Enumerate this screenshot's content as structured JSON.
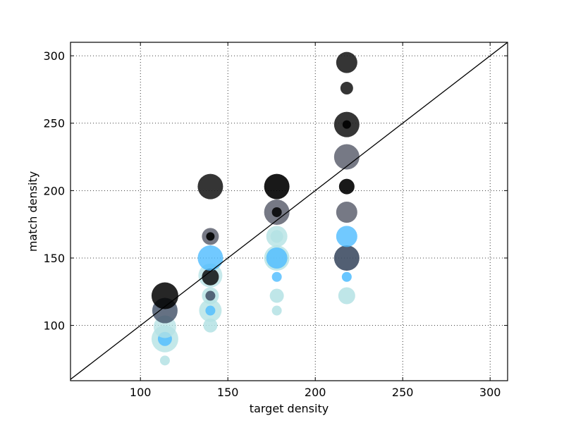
{
  "chart_data": {
    "type": "scatter",
    "title": "",
    "xlabel": "target density",
    "ylabel": "match density",
    "xlim": [
      60,
      310
    ],
    "ylim": [
      59,
      310
    ],
    "xticks": [
      100,
      150,
      200,
      250,
      300
    ],
    "yticks": [
      100,
      150,
      200,
      250,
      300
    ],
    "grid": true,
    "reference_line": {
      "from": [
        60,
        60
      ],
      "to": [
        310,
        310
      ],
      "color": "#000000"
    },
    "colors": {
      "dark": "#1f1f1f",
      "black": "#000000",
      "gray": "#5e6170",
      "slate": "#3f4e64",
      "blue": "#4dbcff",
      "cyan": "#b4e2e4"
    },
    "points": [
      {
        "x": 114,
        "y": 74,
        "size": 7,
        "color": "cyan",
        "alpha": 0.85
      },
      {
        "x": 114,
        "y": 90,
        "size": 19,
        "color": "cyan",
        "alpha": 0.8
      },
      {
        "x": 114,
        "y": 90,
        "size": 10,
        "color": "blue",
        "alpha": 0.8
      },
      {
        "x": 114,
        "y": 99,
        "size": 16,
        "color": "cyan",
        "alpha": 0.75
      },
      {
        "x": 114,
        "y": 111,
        "size": 18,
        "color": "slate",
        "alpha": 0.8
      },
      {
        "x": 114,
        "y": 122,
        "size": 19,
        "color": "black",
        "alpha": 0.85
      },
      {
        "x": 140,
        "y": 100,
        "size": 10,
        "color": "cyan",
        "alpha": 0.85
      },
      {
        "x": 140,
        "y": 111,
        "size": 16,
        "color": "cyan",
        "alpha": 0.8
      },
      {
        "x": 140,
        "y": 111,
        "size": 7,
        "color": "blue",
        "alpha": 0.8
      },
      {
        "x": 140,
        "y": 122,
        "size": 12,
        "color": "cyan",
        "alpha": 0.8
      },
      {
        "x": 140,
        "y": 122,
        "size": 7,
        "color": "slate",
        "alpha": 0.85
      },
      {
        "x": 140,
        "y": 137,
        "size": 17,
        "color": "cyan",
        "alpha": 0.75
      },
      {
        "x": 140,
        "y": 136,
        "size": 12,
        "color": "black",
        "alpha": 0.8
      },
      {
        "x": 140,
        "y": 150,
        "size": 18,
        "color": "blue",
        "alpha": 0.8
      },
      {
        "x": 140,
        "y": 166,
        "size": 12,
        "color": "gray",
        "alpha": 0.85
      },
      {
        "x": 140,
        "y": 166,
        "size": 6,
        "color": "black",
        "alpha": 0.9
      },
      {
        "x": 140,
        "y": 203,
        "size": 18,
        "color": "dark",
        "alpha": 0.9
      },
      {
        "x": 178,
        "y": 111,
        "size": 7,
        "color": "cyan",
        "alpha": 0.85
      },
      {
        "x": 178,
        "y": 122,
        "size": 10,
        "color": "cyan",
        "alpha": 0.85
      },
      {
        "x": 178,
        "y": 136,
        "size": 7,
        "color": "blue",
        "alpha": 0.8
      },
      {
        "x": 178,
        "y": 150,
        "size": 18,
        "color": "cyan",
        "alpha": 0.8
      },
      {
        "x": 178,
        "y": 150,
        "size": 15,
        "color": "blue",
        "alpha": 0.8
      },
      {
        "x": 178,
        "y": 166,
        "size": 15,
        "color": "cyan",
        "alpha": 0.8
      },
      {
        "x": 178,
        "y": 166,
        "size": 9,
        "color": "cyan",
        "alpha": 0.85
      },
      {
        "x": 178,
        "y": 184,
        "size": 18,
        "color": "gray",
        "alpha": 0.85
      },
      {
        "x": 178,
        "y": 184,
        "size": 7,
        "color": "black",
        "alpha": 0.85
      },
      {
        "x": 178,
        "y": 203,
        "size": 18,
        "color": "black",
        "alpha": 0.9
      },
      {
        "x": 218,
        "y": 122,
        "size": 12,
        "color": "cyan",
        "alpha": 0.85
      },
      {
        "x": 218,
        "y": 136,
        "size": 7,
        "color": "blue",
        "alpha": 0.85
      },
      {
        "x": 218,
        "y": 150,
        "size": 18,
        "color": "slate",
        "alpha": 0.9
      },
      {
        "x": 218,
        "y": 166,
        "size": 15,
        "color": "blue",
        "alpha": 0.8
      },
      {
        "x": 218,
        "y": 184,
        "size": 15,
        "color": "gray",
        "alpha": 0.85
      },
      {
        "x": 218,
        "y": 203,
        "size": 11,
        "color": "black",
        "alpha": 0.9
      },
      {
        "x": 218,
        "y": 225,
        "size": 18,
        "color": "gray",
        "alpha": 0.85
      },
      {
        "x": 218,
        "y": 249,
        "size": 18,
        "color": "dark",
        "alpha": 0.9
      },
      {
        "x": 218,
        "y": 249,
        "size": 6,
        "color": "black",
        "alpha": 0.9
      },
      {
        "x": 218,
        "y": 276,
        "size": 9,
        "color": "dark",
        "alpha": 0.9
      },
      {
        "x": 218,
        "y": 295,
        "size": 15,
        "color": "dark",
        "alpha": 0.9
      }
    ]
  }
}
